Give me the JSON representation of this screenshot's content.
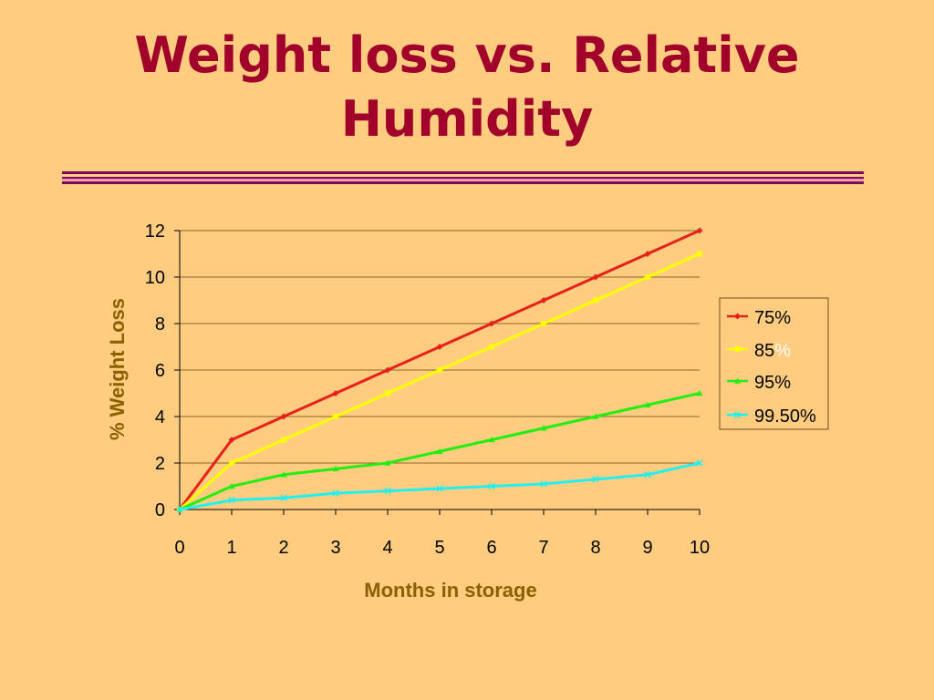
{
  "slide": {
    "title_line1": "Weight loss vs. Relative",
    "title_line2": "Humidity"
  },
  "colors": {
    "background": "#FFCC80",
    "title": "#A0002A",
    "axis_title": "#8A6100",
    "gridline": "#8A6A2A"
  },
  "chart_data": {
    "type": "line",
    "xlabel": "Months in storage",
    "ylabel": "% Weight Loss",
    "x": [
      0,
      1,
      2,
      3,
      4,
      5,
      6,
      7,
      8,
      9,
      10
    ],
    "xlim": [
      0,
      10
    ],
    "ylim": [
      0,
      12
    ],
    "yticks": [
      0,
      2,
      4,
      6,
      8,
      10,
      12
    ],
    "grid": true,
    "legend_position": "right",
    "series": [
      {
        "name": "75%",
        "color": "#E8201A",
        "marker": "diamond",
        "values": [
          0,
          3,
          4,
          5,
          6,
          7,
          8,
          9,
          10,
          11,
          12
        ]
      },
      {
        "name": "85%",
        "name_main": "85",
        "name_suffix": "%",
        "color": "#FFFF00",
        "marker": "square",
        "values": [
          0,
          2,
          3,
          4,
          5,
          6,
          7,
          8,
          9,
          10,
          11
        ]
      },
      {
        "name": "95%",
        "color": "#22EE10",
        "marker": "triangle",
        "values": [
          0,
          1,
          1.5,
          1.75,
          2,
          2.5,
          3,
          3.5,
          4,
          4.5,
          5
        ]
      },
      {
        "name": "99.50%",
        "color": "#22F0F0",
        "marker": "x",
        "values": [
          0,
          0.4,
          0.5,
          0.7,
          0.8,
          0.9,
          1,
          1.1,
          1.3,
          1.5,
          2
        ]
      }
    ]
  }
}
